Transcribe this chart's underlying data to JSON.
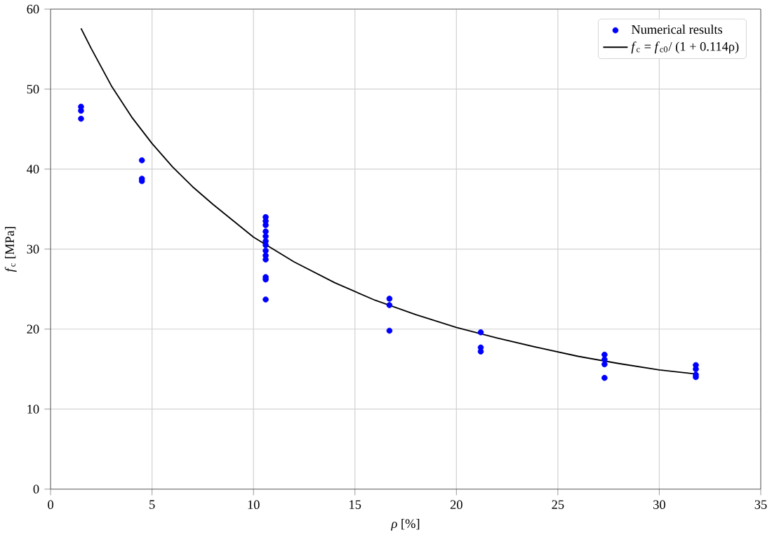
{
  "chart_data": {
    "type": "scatter",
    "xlabel": "*ρ* [%]",
    "ylabel": "*f*$_{c}$ [MPa]",
    "xlim": [
      0,
      35
    ],
    "ylim": [
      0,
      60
    ],
    "xticks": [
      0,
      5,
      10,
      15,
      20,
      25,
      30,
      35
    ],
    "yticks": [
      0,
      10,
      20,
      30,
      40,
      50,
      60
    ],
    "grid": true,
    "legend": "top right",
    "series": [
      {
        "name": "Numerical results",
        "marker": "circle",
        "color": "#0000ff",
        "x": [
          1.5,
          1.5,
          1.5,
          4.5,
          4.5,
          4.5,
          10.6,
          10.6,
          10.6,
          10.6,
          10.6,
          10.6,
          10.6,
          10.6,
          10.6,
          10.6,
          10.6,
          10.6,
          10.6,
          16.7,
          16.7,
          16.7,
          21.2,
          21.2,
          21.2,
          27.3,
          27.3,
          27.3,
          27.3,
          31.8,
          31.8,
          31.8,
          31.8
        ],
        "values": [
          47.8,
          47.3,
          46.3,
          41.1,
          38.8,
          38.5,
          34.0,
          33.5,
          33.0,
          32.2,
          31.6,
          31.0,
          30.5,
          29.8,
          29.2,
          28.7,
          26.5,
          26.2,
          23.7,
          23.8,
          23.0,
          19.8,
          19.6,
          17.7,
          17.2,
          16.8,
          16.2,
          15.6,
          13.9,
          15.5,
          15.0,
          14.3,
          14.0
        ]
      },
      {
        "name": "*f*$_{c}$ = *f*$_{c0}$/ (1 + 0.114ρ)",
        "type": "line",
        "marker": "none",
        "line_style": "solid",
        "color": "#000000",
        "x": [
          1.5,
          2,
          3,
          4,
          5,
          6,
          7,
          8,
          10,
          12,
          14,
          16,
          18,
          20,
          22,
          24,
          26,
          28,
          30,
          31.8
        ],
        "values": [
          57.6,
          55.1,
          50.4,
          46.5,
          43.2,
          40.3,
          37.8,
          35.6,
          31.5,
          28.4,
          25.8,
          23.6,
          21.8,
          20.2,
          18.9,
          17.7,
          16.6,
          15.7,
          14.9,
          14.4
        ]
      }
    ]
  }
}
